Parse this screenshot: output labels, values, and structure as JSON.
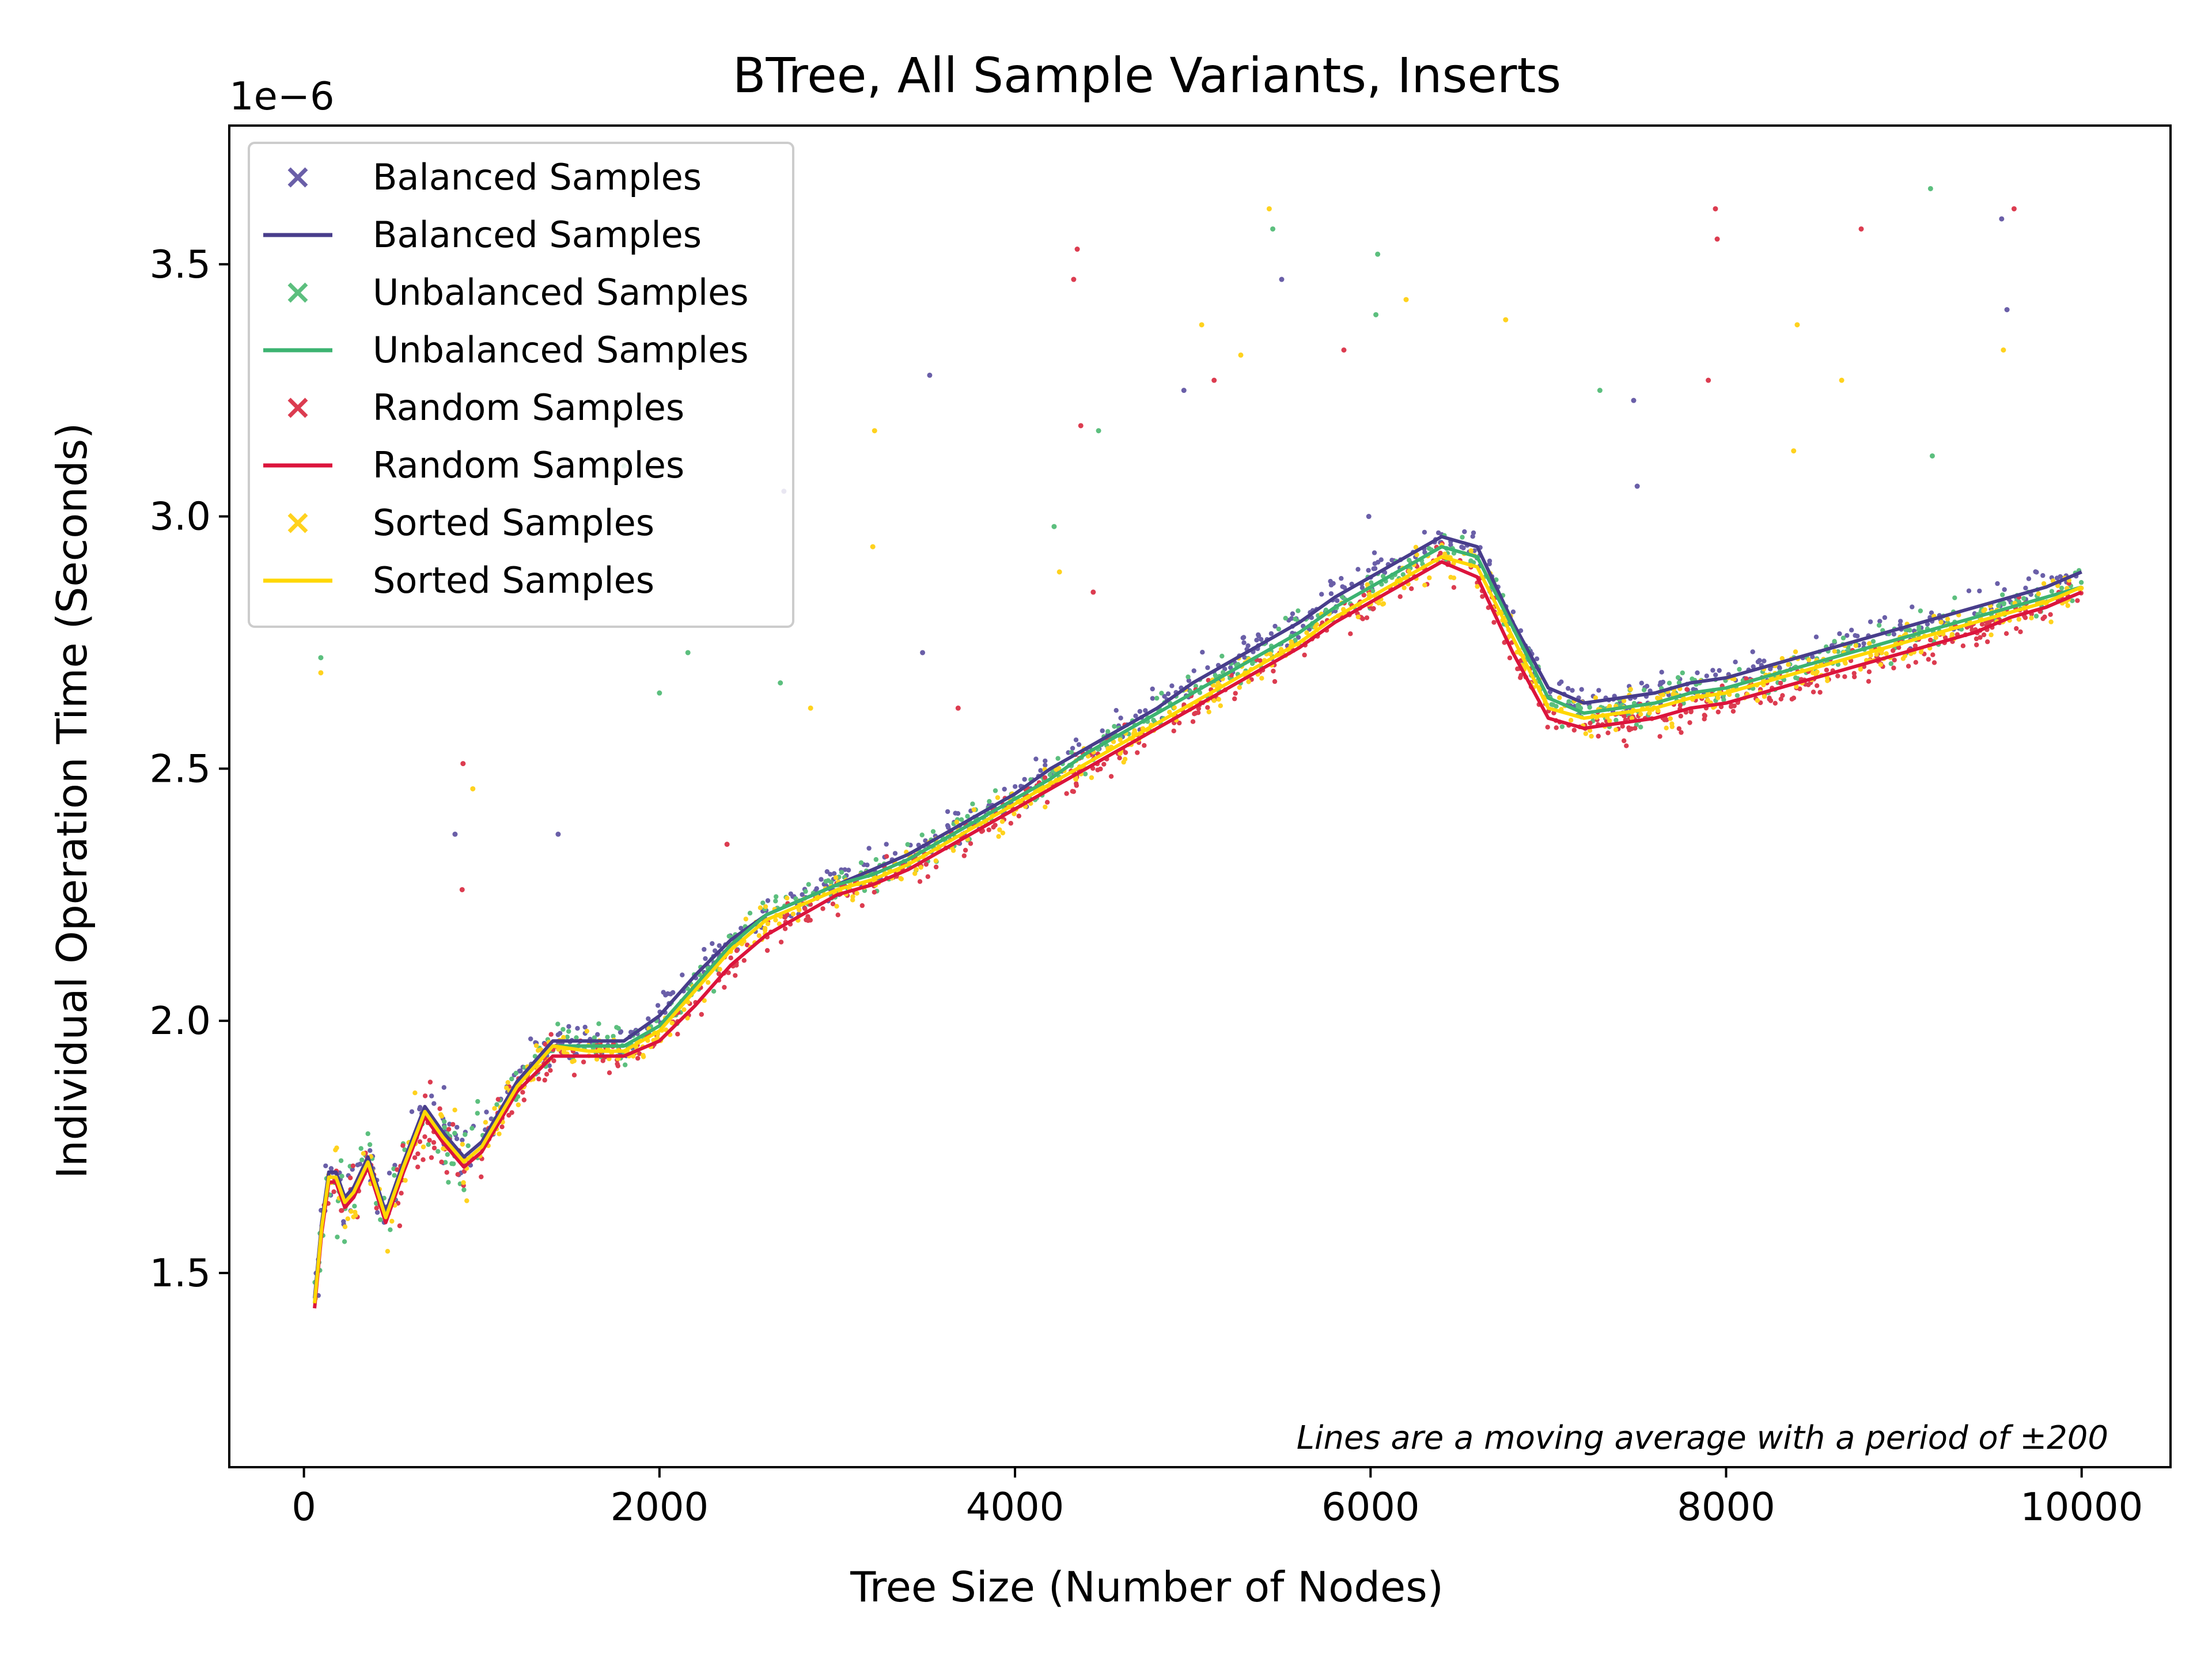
{
  "chart_data": {
    "type": "scatter",
    "title": "BTree, All Sample Variants, Inserts",
    "xlabel": "Tree Size (Number of Nodes)",
    "ylabel": "Individual Operation Time (Seconds)",
    "y_offset_label": "1e−6",
    "y_scale": 1e-06,
    "xlim": [
      -420,
      10500
    ],
    "ylim": [
      1.115,
      3.775
    ],
    "x_ticks": [
      0,
      2000,
      4000,
      6000,
      8000,
      10000
    ],
    "x_tick_labels": [
      "0",
      "2000",
      "4000",
      "6000",
      "8000",
      "10000"
    ],
    "y_ticks": [
      1.5,
      2.0,
      2.5,
      3.0,
      3.5
    ],
    "y_tick_labels": [
      "1.5",
      "2.0",
      "2.5",
      "3.0",
      "3.5"
    ],
    "grid": false,
    "legend_position": "upper-left",
    "annotation": "Lines are a moving average with a period of ±200",
    "legend": [
      {
        "label": "Balanced Samples",
        "kind": "marker",
        "color": "#6a5fa8"
      },
      {
        "label": "Balanced Samples",
        "kind": "line",
        "color": "#483d8b"
      },
      {
        "label": "Unbalanced Samples",
        "kind": "marker",
        "color": "#5cbf7e"
      },
      {
        "label": "Unbalanced Samples",
        "kind": "line",
        "color": "#3cb371"
      },
      {
        "label": "Random Samples",
        "kind": "marker",
        "color": "#dc3c50"
      },
      {
        "label": "Random Samples",
        "kind": "line",
        "color": "#dc143c"
      },
      {
        "label": "Sorted Samples",
        "kind": "marker",
        "color": "#ffd21e"
      },
      {
        "label": "Sorted Samples",
        "kind": "line",
        "color": "#ffd700"
      }
    ],
    "series": [
      {
        "name": "Balanced Samples",
        "marker_color": "#6a5fa8",
        "line_color": "#483d8b",
        "x": [
          60,
          100,
          140,
          180,
          230,
          280,
          360,
          460,
          560,
          680,
          780,
          900,
          1000,
          1200,
          1400,
          1600,
          1800,
          2000,
          2200,
          2400,
          2600,
          2800,
          3000,
          3200,
          3400,
          3600,
          3800,
          4000,
          4200,
          4400,
          4600,
          4800,
          5000,
          5200,
          5400,
          5600,
          5800,
          6000,
          6200,
          6400,
          6600,
          6800,
          7000,
          7200,
          7400,
          7600,
          7800,
          8000,
          8200,
          8400,
          8600,
          8800,
          9000,
          9200,
          9400,
          9600,
          9800,
          10000
        ],
        "y": [
          1.45,
          1.6,
          1.7,
          1.7,
          1.65,
          1.67,
          1.73,
          1.62,
          1.72,
          1.83,
          1.78,
          1.73,
          1.76,
          1.88,
          1.96,
          1.96,
          1.96,
          2.01,
          2.09,
          2.16,
          2.21,
          2.24,
          2.27,
          2.3,
          2.33,
          2.37,
          2.41,
          2.45,
          2.5,
          2.54,
          2.58,
          2.62,
          2.67,
          2.71,
          2.75,
          2.79,
          2.84,
          2.88,
          2.92,
          2.96,
          2.94,
          2.79,
          2.66,
          2.63,
          2.64,
          2.65,
          2.67,
          2.68,
          2.7,
          2.72,
          2.74,
          2.76,
          2.78,
          2.8,
          2.82,
          2.84,
          2.86,
          2.89
        ]
      },
      {
        "name": "Unbalanced Samples",
        "marker_color": "#5cbf7e",
        "line_color": "#3cb371",
        "x": [
          60,
          100,
          140,
          180,
          230,
          280,
          360,
          460,
          560,
          680,
          780,
          900,
          1000,
          1200,
          1400,
          1600,
          1800,
          2000,
          2200,
          2400,
          2600,
          2800,
          3000,
          3200,
          3400,
          3600,
          3800,
          4000,
          4200,
          4400,
          4600,
          4800,
          5000,
          5200,
          5400,
          5600,
          5800,
          6000,
          6200,
          6400,
          6600,
          6800,
          7000,
          7200,
          7400,
          7600,
          7800,
          8000,
          8200,
          8400,
          8600,
          8800,
          9000,
          9200,
          9400,
          9600,
          9800,
          10000
        ],
        "y": [
          1.44,
          1.59,
          1.69,
          1.69,
          1.64,
          1.66,
          1.72,
          1.61,
          1.71,
          1.82,
          1.77,
          1.72,
          1.75,
          1.87,
          1.95,
          1.95,
          1.95,
          1.99,
          2.07,
          2.15,
          2.21,
          2.24,
          2.27,
          2.29,
          2.32,
          2.36,
          2.4,
          2.44,
          2.48,
          2.53,
          2.57,
          2.61,
          2.65,
          2.69,
          2.73,
          2.77,
          2.82,
          2.86,
          2.9,
          2.94,
          2.92,
          2.78,
          2.64,
          2.61,
          2.62,
          2.63,
          2.65,
          2.66,
          2.68,
          2.7,
          2.72,
          2.74,
          2.76,
          2.78,
          2.8,
          2.82,
          2.84,
          2.86
        ]
      },
      {
        "name": "Random Samples",
        "marker_color": "#dc3c50",
        "line_color": "#dc143c",
        "x": [
          60,
          100,
          140,
          180,
          230,
          280,
          360,
          460,
          560,
          680,
          780,
          900,
          1000,
          1200,
          1400,
          1600,
          1800,
          2000,
          2200,
          2400,
          2600,
          2800,
          3000,
          3200,
          3400,
          3600,
          3800,
          4000,
          4200,
          4400,
          4600,
          4800,
          5000,
          5200,
          5400,
          5600,
          5800,
          6000,
          6200,
          6400,
          6600,
          6800,
          7000,
          7200,
          7400,
          7600,
          7800,
          8000,
          8200,
          8400,
          8600,
          8800,
          9000,
          9200,
          9400,
          9600,
          9800,
          10000
        ],
        "y": [
          1.43,
          1.58,
          1.68,
          1.68,
          1.63,
          1.65,
          1.71,
          1.6,
          1.7,
          1.81,
          1.76,
          1.71,
          1.74,
          1.86,
          1.93,
          1.93,
          1.93,
          1.96,
          2.03,
          2.11,
          2.17,
          2.21,
          2.25,
          2.27,
          2.3,
          2.34,
          2.38,
          2.42,
          2.46,
          2.5,
          2.54,
          2.58,
          2.62,
          2.66,
          2.7,
          2.74,
          2.79,
          2.83,
          2.87,
          2.91,
          2.88,
          2.73,
          2.6,
          2.58,
          2.59,
          2.6,
          2.62,
          2.63,
          2.65,
          2.67,
          2.69,
          2.71,
          2.73,
          2.75,
          2.77,
          2.8,
          2.82,
          2.85
        ]
      },
      {
        "name": "Sorted Samples",
        "marker_color": "#ffd21e",
        "line_color": "#ffd700",
        "x": [
          60,
          100,
          140,
          180,
          230,
          280,
          360,
          460,
          560,
          680,
          780,
          900,
          1000,
          1200,
          1400,
          1600,
          1800,
          2000,
          2200,
          2400,
          2600,
          2800,
          3000,
          3200,
          3400,
          3600,
          3800,
          4000,
          4200,
          4400,
          4600,
          4800,
          5000,
          5200,
          5400,
          5600,
          5800,
          6000,
          6200,
          6400,
          6600,
          6800,
          7000,
          7200,
          7400,
          7600,
          7800,
          8000,
          8200,
          8400,
          8600,
          8800,
          9000,
          9200,
          9400,
          9600,
          9800,
          10000
        ],
        "y": [
          1.44,
          1.59,
          1.69,
          1.69,
          1.64,
          1.66,
          1.72,
          1.61,
          1.71,
          1.82,
          1.77,
          1.72,
          1.75,
          1.87,
          1.95,
          1.94,
          1.94,
          1.98,
          2.06,
          2.14,
          2.2,
          2.23,
          2.26,
          2.28,
          2.31,
          2.35,
          2.39,
          2.43,
          2.47,
          2.51,
          2.55,
          2.59,
          2.63,
          2.67,
          2.71,
          2.75,
          2.8,
          2.84,
          2.88,
          2.92,
          2.9,
          2.76,
          2.62,
          2.6,
          2.61,
          2.62,
          2.64,
          2.65,
          2.67,
          2.69,
          2.71,
          2.73,
          2.75,
          2.77,
          2.79,
          2.81,
          2.83,
          2.86
        ]
      }
    ],
    "outliers": [
      {
        "series": 0,
        "x": 5500,
        "y": 3.47
      },
      {
        "series": 0,
        "x": 9550,
        "y": 3.59
      },
      {
        "series": 0,
        "x": 9580,
        "y": 3.41
      },
      {
        "series": 0,
        "x": 4950,
        "y": 3.25
      },
      {
        "series": 0,
        "x": 3520,
        "y": 3.28
      },
      {
        "series": 0,
        "x": 7480,
        "y": 3.23
      },
      {
        "series": 0,
        "x": 7500,
        "y": 3.06
      },
      {
        "series": 0,
        "x": 1430,
        "y": 2.37
      },
      {
        "series": 0,
        "x": 850,
        "y": 2.37
      },
      {
        "series": 0,
        "x": 3480,
        "y": 2.73
      },
      {
        "series": 0,
        "x": 2700,
        "y": 3.05
      },
      {
        "series": 0,
        "x": 5990,
        "y": 3.0
      },
      {
        "series": 1,
        "x": 9150,
        "y": 3.65
      },
      {
        "series": 1,
        "x": 6040,
        "y": 3.52
      },
      {
        "series": 1,
        "x": 6030,
        "y": 3.4
      },
      {
        "series": 1,
        "x": 5450,
        "y": 3.57
      },
      {
        "series": 1,
        "x": 4470,
        "y": 3.17
      },
      {
        "series": 1,
        "x": 7290,
        "y": 3.25
      },
      {
        "series": 1,
        "x": 9160,
        "y": 3.12
      },
      {
        "series": 1,
        "x": 2000,
        "y": 2.65
      },
      {
        "series": 1,
        "x": 2160,
        "y": 2.73
      },
      {
        "series": 1,
        "x": 2680,
        "y": 2.67
      },
      {
        "series": 1,
        "x": 1800,
        "y": 3.1
      },
      {
        "series": 1,
        "x": 4220,
        "y": 2.98
      },
      {
        "series": 1,
        "x": 95,
        "y": 2.72
      },
      {
        "series": 2,
        "x": 4350,
        "y": 3.53
      },
      {
        "series": 2,
        "x": 4330,
        "y": 3.47
      },
      {
        "series": 2,
        "x": 7940,
        "y": 3.61
      },
      {
        "series": 2,
        "x": 7950,
        "y": 3.55
      },
      {
        "series": 2,
        "x": 9620,
        "y": 3.61
      },
      {
        "series": 2,
        "x": 8760,
        "y": 3.57
      },
      {
        "series": 2,
        "x": 5850,
        "y": 3.33
      },
      {
        "series": 2,
        "x": 5120,
        "y": 3.27
      },
      {
        "series": 2,
        "x": 4370,
        "y": 3.18
      },
      {
        "series": 2,
        "x": 7900,
        "y": 3.27
      },
      {
        "series": 2,
        "x": 895,
        "y": 2.51
      },
      {
        "series": 2,
        "x": 890,
        "y": 2.26
      },
      {
        "series": 2,
        "x": 2380,
        "y": 2.35
      },
      {
        "series": 2,
        "x": 3680,
        "y": 2.62
      },
      {
        "series": 2,
        "x": 4440,
        "y": 2.85
      },
      {
        "series": 3,
        "x": 5430,
        "y": 3.61
      },
      {
        "series": 3,
        "x": 5050,
        "y": 3.38
      },
      {
        "series": 3,
        "x": 6200,
        "y": 3.43
      },
      {
        "series": 3,
        "x": 6760,
        "y": 3.39
      },
      {
        "series": 3,
        "x": 8400,
        "y": 3.38
      },
      {
        "series": 3,
        "x": 9560,
        "y": 3.33
      },
      {
        "series": 3,
        "x": 3210,
        "y": 3.17
      },
      {
        "series": 3,
        "x": 8380,
        "y": 3.13
      },
      {
        "series": 3,
        "x": 5270,
        "y": 3.32
      },
      {
        "series": 3,
        "x": 3200,
        "y": 2.94
      },
      {
        "series": 3,
        "x": 4250,
        "y": 2.89
      },
      {
        "series": 3,
        "x": 950,
        "y": 2.46
      },
      {
        "series": 3,
        "x": 2850,
        "y": 2.62
      },
      {
        "series": 3,
        "x": 95,
        "y": 2.69
      },
      {
        "series": 3,
        "x": 8650,
        "y": 3.27
      }
    ]
  }
}
